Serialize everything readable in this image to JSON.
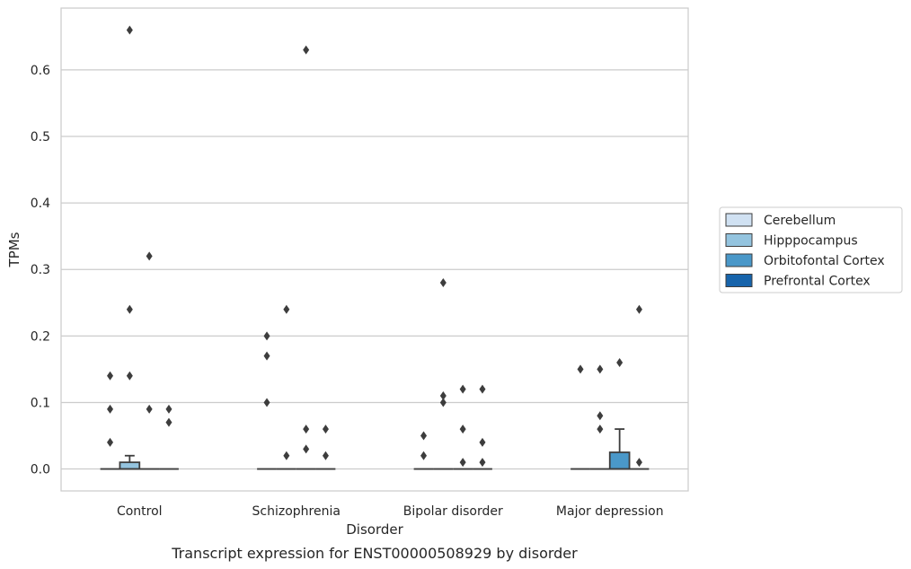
{
  "chart_data": {
    "type": "box",
    "title": "",
    "caption": "Transcript expression for ENST00000508929 by disorder",
    "xlabel": "Disorder",
    "ylabel": "TPMs",
    "categories": [
      "Control",
      "Schizophrenia",
      "Bipolar disorder",
      "Major depression"
    ],
    "ylim": [
      -0.033,
      0.693
    ],
    "yticks": [
      0.0,
      0.1,
      0.2,
      0.3,
      0.4,
      0.5,
      0.6
    ],
    "ytick_labels": [
      "0.0",
      "0.1",
      "0.2",
      "0.3",
      "0.4",
      "0.5",
      "0.6"
    ],
    "grid": "horizontal",
    "legend_position": "right",
    "series": [
      {
        "name": "Cerebellum",
        "color": "#d0e1f2",
        "boxes": [
          {
            "category": "Control",
            "q1": 0,
            "median": 0,
            "q3": 0,
            "whisker_low": 0,
            "whisker_high": 0,
            "outliers": [
              0.04,
              0.09,
              0.14
            ]
          },
          {
            "category": "Schizophrenia",
            "q1": 0,
            "median": 0,
            "q3": 0,
            "whisker_low": 0,
            "whisker_high": 0,
            "outliers": [
              0.1,
              0.17,
              0.2
            ]
          },
          {
            "category": "Bipolar disorder",
            "q1": 0,
            "median": 0,
            "q3": 0,
            "whisker_low": 0,
            "whisker_high": 0,
            "outliers": [
              0.02,
              0.05
            ]
          },
          {
            "category": "Major depression",
            "q1": 0,
            "median": 0,
            "q3": 0,
            "whisker_low": 0,
            "whisker_high": 0,
            "outliers": [
              0.15
            ]
          }
        ]
      },
      {
        "name": "Hipppocampus",
        "color": "#94c4df",
        "boxes": [
          {
            "category": "Control",
            "q1": 0,
            "median": 0,
            "q3": 0.01,
            "whisker_low": 0,
            "whisker_high": 0.02,
            "outliers": [
              0.14,
              0.24,
              0.66
            ]
          },
          {
            "category": "Schizophrenia",
            "q1": 0,
            "median": 0,
            "q3": 0,
            "whisker_low": 0,
            "whisker_high": 0,
            "outliers": [
              0.02,
              0.24
            ]
          },
          {
            "category": "Bipolar disorder",
            "q1": 0,
            "median": 0,
            "q3": 0,
            "whisker_low": 0,
            "whisker_high": 0,
            "outliers": [
              0.1,
              0.11,
              0.28
            ]
          },
          {
            "category": "Major depression",
            "q1": 0,
            "median": 0,
            "q3": 0,
            "whisker_low": 0,
            "whisker_high": 0,
            "outliers": [
              0.06,
              0.08,
              0.15
            ]
          }
        ]
      },
      {
        "name": "Orbitofontal Cortex",
        "color": "#4a98c9",
        "boxes": [
          {
            "category": "Control",
            "q1": 0,
            "median": 0,
            "q3": 0,
            "whisker_low": 0,
            "whisker_high": 0,
            "outliers": [
              0.09,
              0.32
            ]
          },
          {
            "category": "Schizophrenia",
            "q1": 0,
            "median": 0,
            "q3": 0,
            "whisker_low": 0,
            "whisker_high": 0,
            "outliers": [
              0.03,
              0.06,
              0.63
            ]
          },
          {
            "category": "Bipolar disorder",
            "q1": 0,
            "median": 0,
            "q3": 0,
            "whisker_low": 0,
            "whisker_high": 0,
            "outliers": [
              0.01,
              0.06,
              0.12
            ]
          },
          {
            "category": "Major depression",
            "q1": 0,
            "median": 0,
            "q3": 0.025,
            "whisker_low": 0,
            "whisker_high": 0.06,
            "outliers": [
              0.16
            ]
          }
        ]
      },
      {
        "name": "Prefrontal Cortex",
        "color": "#1764ab",
        "boxes": [
          {
            "category": "Control",
            "q1": 0,
            "median": 0,
            "q3": 0,
            "whisker_low": 0,
            "whisker_high": 0,
            "outliers": [
              0.07,
              0.09
            ]
          },
          {
            "category": "Schizophrenia",
            "q1": 0,
            "median": 0,
            "q3": 0,
            "whisker_low": 0,
            "whisker_high": 0,
            "outliers": [
              0.02,
              0.06
            ]
          },
          {
            "category": "Bipolar disorder",
            "q1": 0,
            "median": 0,
            "q3": 0,
            "whisker_low": 0,
            "whisker_high": 0,
            "outliers": [
              0.01,
              0.04,
              0.12
            ]
          },
          {
            "category": "Major depression",
            "q1": 0,
            "median": 0,
            "q3": 0,
            "whisker_low": 0,
            "whisker_high": 0,
            "outliers": [
              0.01,
              0.24
            ]
          }
        ]
      }
    ]
  }
}
